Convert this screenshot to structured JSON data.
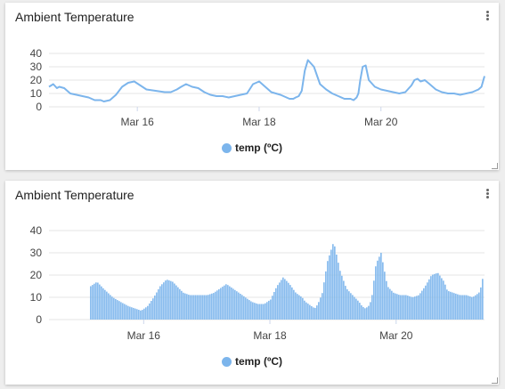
{
  "colors": {
    "series": "#7cb5ec",
    "grid": "#e6e6e6"
  },
  "cards": [
    {
      "title": "Ambient Temperature",
      "menu_icon": "more-vert-icon",
      "legend": "temp (ºC)"
    },
    {
      "title": "Ambient Temperature",
      "menu_icon": "more-vert-icon",
      "legend": "temp (ºC)"
    }
  ],
  "chart_data": [
    {
      "type": "line",
      "title": "Ambient Temperature",
      "ylim": [
        0,
        40
      ],
      "yticks": [
        0,
        10,
        20,
        30,
        40
      ],
      "xticks": [
        "Mar 16",
        "Mar 18",
        "Mar 20"
      ],
      "xlim": [
        14.55,
        21.7
      ],
      "grid": true,
      "legend_position": "bottom",
      "series": [
        {
          "name": "temp (ºC)",
          "x": [
            14.55,
            14.62,
            14.68,
            14.72,
            14.8,
            14.9,
            15.0,
            15.1,
            15.2,
            15.3,
            15.4,
            15.45,
            15.55,
            15.65,
            15.75,
            15.85,
            15.95,
            16.05,
            16.15,
            16.3,
            16.45,
            16.55,
            16.65,
            16.72,
            16.8,
            16.9,
            17.0,
            17.1,
            17.2,
            17.3,
            17.4,
            17.5,
            17.6,
            17.7,
            17.8,
            17.9,
            18.0,
            18.1,
            18.2,
            18.35,
            18.45,
            18.5,
            18.56,
            18.6,
            18.65,
            18.7,
            18.75,
            18.8,
            18.9,
            19.0,
            19.1,
            19.2,
            19.3,
            19.4,
            19.5,
            19.55,
            19.6,
            19.63,
            19.66,
            19.7,
            19.75,
            19.8,
            19.9,
            20.0,
            20.1,
            20.2,
            20.3,
            20.4,
            20.5,
            20.55,
            20.6,
            20.65,
            20.72,
            20.8,
            20.9,
            21.0,
            21.1,
            21.2,
            21.3,
            21.4,
            21.5,
            21.6,
            21.65,
            21.7
          ],
          "y": [
            15,
            17,
            14,
            15,
            14,
            10,
            9,
            8,
            7,
            5,
            5,
            4,
            5,
            9,
            15,
            18,
            19,
            16,
            13,
            12,
            11,
            11,
            13,
            15,
            17,
            15,
            14,
            11,
            9,
            8,
            8,
            7,
            8,
            9,
            10,
            17,
            19,
            15,
            11,
            9,
            7,
            6,
            6,
            7,
            8,
            12,
            27,
            35,
            30,
            17,
            13,
            10,
            8,
            6,
            6,
            5,
            7,
            10,
            20,
            30,
            31,
            20,
            15,
            13,
            12,
            11,
            10,
            11,
            16,
            20,
            21,
            19,
            20,
            17,
            13,
            11,
            10,
            10,
            9,
            10,
            11,
            13,
            15,
            23
          ]
        }
      ]
    },
    {
      "type": "bar",
      "title": "Ambient Temperature",
      "ylim": [
        0,
        40
      ],
      "yticks": [
        0,
        10,
        20,
        30,
        40
      ],
      "xticks": [
        "Mar 16",
        "Mar 18",
        "Mar 20"
      ],
      "xlim": [
        14.5,
        21.4
      ],
      "grid": true,
      "legend_position": "bottom",
      "series": [
        {
          "name": "temp (ºC)",
          "x": [
            15.15,
            15.25,
            15.35,
            15.5,
            15.62,
            15.75,
            15.85,
            15.95,
            16.05,
            16.15,
            16.25,
            16.35,
            16.45,
            16.55,
            16.62,
            16.72,
            16.8,
            16.9,
            17.0,
            17.1,
            17.2,
            17.3,
            17.4,
            17.5,
            17.6,
            17.7,
            17.8,
            17.9,
            18.0,
            18.1,
            18.2,
            18.3,
            18.4,
            18.5,
            18.55,
            18.6,
            18.65,
            18.7,
            18.75,
            18.82,
            18.9,
            19.0,
            19.1,
            19.2,
            19.3,
            19.4,
            19.45,
            19.5,
            19.55,
            19.6,
            19.67,
            19.75,
            19.85,
            19.95,
            20.05,
            20.15,
            20.25,
            20.35,
            20.45,
            20.55,
            20.65,
            20.7,
            20.75,
            20.8,
            20.9,
            21.0,
            21.1,
            21.2,
            21.3,
            21.35,
            21.38
          ],
          "y": [
            15,
            17,
            14,
            10,
            8,
            6,
            5,
            4,
            6,
            10,
            15,
            18,
            17,
            14,
            12,
            11,
            11,
            11,
            11,
            12,
            14,
            16,
            14,
            12,
            10,
            8,
            7,
            7,
            9,
            15,
            19,
            16,
            12,
            10,
            8,
            7,
            6,
            5,
            7,
            12,
            26,
            35,
            22,
            14,
            11,
            8,
            6,
            5,
            6,
            9,
            25,
            30,
            15,
            12,
            11,
            11,
            10,
            11,
            15,
            20,
            21,
            19,
            17,
            13,
            12,
            11,
            11,
            10,
            12,
            16,
            24
          ]
        }
      ]
    }
  ]
}
